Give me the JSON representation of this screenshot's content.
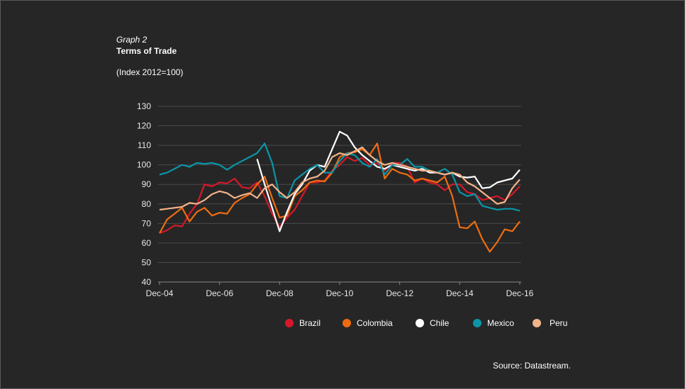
{
  "header": {
    "graph_label": "Graph 2",
    "title": "Terms of Trade",
    "subtitle": "(Index 2012=100)"
  },
  "source": "Source: Datastream.",
  "chart_data": {
    "type": "line",
    "title": "Terms of Trade",
    "ylabel": "Index 2012=100",
    "ylim": [
      40,
      130
    ],
    "yticks": [
      40,
      50,
      60,
      70,
      80,
      90,
      100,
      110,
      120,
      130
    ],
    "xticks": [
      "Dec-04",
      "Dec-06",
      "Dec-08",
      "Dec-10",
      "Dec-12",
      "Dec-14",
      "Dec-16"
    ],
    "x_frequency": "quarterly, Dec-04 to Dec-16",
    "grid": true,
    "legend_position": "bottom",
    "series": [
      {
        "name": "Brazil",
        "color": "#d7182a",
        "values": [
          65,
          66.5,
          69,
          68.5,
          75,
          80,
          90,
          89,
          91,
          90.5,
          93,
          88.5,
          88,
          91,
          84,
          75,
          68,
          73,
          77,
          84,
          91,
          91,
          92,
          97,
          100,
          104,
          102,
          103.5,
          100,
          101,
          97,
          101,
          101,
          99,
          91,
          93,
          91,
          90,
          87,
          90,
          90,
          86,
          85,
          82,
          83,
          84,
          82,
          85,
          89
        ]
      },
      {
        "name": "Colombia",
        "color": "#ee6c10",
        "values": [
          65,
          72,
          75,
          78,
          71,
          76,
          78,
          74,
          75.5,
          75,
          80.5,
          83,
          85,
          90,
          94,
          83,
          73,
          74,
          84,
          87,
          91,
          92,
          91.5,
          96,
          104,
          106,
          106.5,
          108,
          105,
          111,
          93,
          98,
          96,
          95,
          92,
          93,
          92,
          91,
          94,
          84,
          68,
          67.5,
          71,
          62,
          55.5,
          60.5,
          67,
          66,
          71
        ]
      },
      {
        "name": "Chile",
        "color": "#ffffff",
        "values": [
          null,
          null,
          null,
          null,
          null,
          null,
          null,
          null,
          null,
          null,
          null,
          null,
          null,
          103,
          90,
          78,
          66,
          76,
          85,
          90,
          97,
          100,
          99,
          108,
          117,
          115,
          109,
          105,
          102,
          99,
          98,
          100,
          99,
          98,
          97,
          98,
          96,
          96,
          95,
          96,
          94,
          93.5,
          94,
          88,
          88.5,
          91,
          92,
          93,
          97.5
        ]
      },
      {
        "name": "Mexico",
        "color": "#0a96a8",
        "values": [
          95,
          96,
          98,
          100,
          99,
          101,
          100.5,
          101,
          100,
          97.5,
          100,
          102,
          104,
          106,
          111,
          101,
          84,
          83,
          92,
          95,
          98,
          100,
          96,
          96,
          102,
          106,
          105,
          101,
          99,
          103,
          95,
          100,
          100,
          103,
          99,
          99,
          97,
          96,
          98,
          95,
          86,
          84,
          85,
          79,
          78,
          77,
          77.5,
          77.5,
          76.5
        ]
      },
      {
        "name": "Peru",
        "color": "#f3b38a",
        "values": [
          77,
          77.5,
          78,
          78.5,
          80.5,
          80,
          82,
          85,
          86.5,
          85.5,
          83,
          84.5,
          85.5,
          83,
          88,
          90,
          86,
          83,
          86,
          91,
          93,
          94,
          97,
          104,
          106,
          105,
          107,
          109,
          105,
          102,
          100,
          101,
          100,
          99,
          98,
          97,
          97,
          96,
          95,
          96,
          95,
          91,
          89,
          86,
          83,
          80,
          81,
          88,
          92.5
        ]
      }
    ]
  }
}
